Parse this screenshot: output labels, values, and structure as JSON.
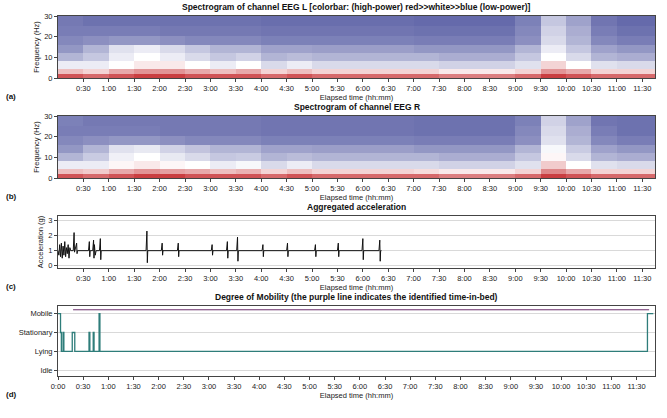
{
  "chart_data": [
    {
      "type": "heatmap",
      "panel": "(a)",
      "title": "Spectrogram of channel EEG L [colorbar: (high-power) red>>white>>blue (low-power)]",
      "x_label": "Elapsed time (hh:mm)",
      "y_label": "Frequency (Hz)",
      "x": [
        15,
        45,
        75,
        105,
        135,
        165,
        195,
        225,
        255,
        285,
        315,
        345,
        375,
        405,
        435,
        465,
        495,
        525,
        555,
        585,
        615,
        645,
        675,
        705
      ],
      "y": [
        1,
        3,
        6,
        10,
        14,
        18,
        22.5,
        27.5
      ],
      "z": [
        [
          0.9,
          0.85,
          0.9,
          0.95,
          0.95,
          0.9,
          0.9,
          0.9,
          0.85,
          0.9,
          0.85,
          0.85,
          0.85,
          0.85,
          0.85,
          0.8,
          0.8,
          0.8,
          0.85,
          0.95,
          0.9,
          0.85,
          0.85,
          0.85
        ],
        [
          0.65,
          0.6,
          0.7,
          0.75,
          0.75,
          0.7,
          0.65,
          0.7,
          0.6,
          0.65,
          0.6,
          0.6,
          0.6,
          0.6,
          0.6,
          0.55,
          0.55,
          0.55,
          0.6,
          0.75,
          0.7,
          0.6,
          0.6,
          0.6
        ],
        [
          0.45,
          0.45,
          0.5,
          0.55,
          0.55,
          0.5,
          0.45,
          0.5,
          0.4,
          0.45,
          0.4,
          0.4,
          0.4,
          0.4,
          0.4,
          0.38,
          0.38,
          0.38,
          0.42,
          0.6,
          0.5,
          0.42,
          0.4,
          0.4
        ],
        [
          0.3,
          0.35,
          0.45,
          0.5,
          0.45,
          0.4,
          0.35,
          0.38,
          0.3,
          0.32,
          0.3,
          0.3,
          0.3,
          0.3,
          0.3,
          0.28,
          0.28,
          0.28,
          0.35,
          0.5,
          0.4,
          0.3,
          0.28,
          0.28
        ],
        [
          0.22,
          0.3,
          0.42,
          0.45,
          0.4,
          0.35,
          0.3,
          0.3,
          0.25,
          0.25,
          0.24,
          0.24,
          0.24,
          0.24,
          0.22,
          0.22,
          0.22,
          0.22,
          0.3,
          0.45,
          0.35,
          0.25,
          0.22,
          0.22
        ],
        [
          0.18,
          0.2,
          0.22,
          0.22,
          0.2,
          0.18,
          0.18,
          0.18,
          0.16,
          0.16,
          0.16,
          0.16,
          0.16,
          0.16,
          0.15,
          0.15,
          0.15,
          0.15,
          0.2,
          0.4,
          0.3,
          0.18,
          0.15,
          0.15
        ],
        [
          0.15,
          0.15,
          0.15,
          0.15,
          0.14,
          0.14,
          0.14,
          0.14,
          0.13,
          0.13,
          0.13,
          0.13,
          0.13,
          0.13,
          0.12,
          0.12,
          0.12,
          0.12,
          0.18,
          0.38,
          0.28,
          0.15,
          0.12,
          0.12
        ],
        [
          0.14,
          0.12,
          0.12,
          0.12,
          0.12,
          0.12,
          0.12,
          0.12,
          0.11,
          0.11,
          0.11,
          0.11,
          0.11,
          0.11,
          0.1,
          0.1,
          0.1,
          0.1,
          0.16,
          0.35,
          0.25,
          0.13,
          0.1,
          0.1
        ]
      ],
      "zlim": [
        0,
        1
      ],
      "colors": [
        "#3f4596",
        "#ffffff",
        "#c4282c"
      ],
      "xlim": [
        0,
        705
      ],
      "xticks": [
        {
          "value": 30,
          "label": "0:30"
        },
        {
          "value": 60,
          "label": "1:00"
        },
        {
          "value": 90,
          "label": "1:30"
        },
        {
          "value": 120,
          "label": "2:00"
        },
        {
          "value": 150,
          "label": "2:30"
        },
        {
          "value": 180,
          "label": "3:00"
        },
        {
          "value": 210,
          "label": "3:30"
        },
        {
          "value": 240,
          "label": "4:00"
        },
        {
          "value": 270,
          "label": "4:30"
        },
        {
          "value": 300,
          "label": "5:00"
        },
        {
          "value": 330,
          "label": "5:30"
        },
        {
          "value": 360,
          "label": "6:00"
        },
        {
          "value": 390,
          "label": "6:30"
        },
        {
          "value": 420,
          "label": "7:00"
        },
        {
          "value": 450,
          "label": "7:30"
        },
        {
          "value": 480,
          "label": "8:00"
        },
        {
          "value": 510,
          "label": "8:30"
        },
        {
          "value": 540,
          "label": "9:00"
        },
        {
          "value": 570,
          "label": "9:30"
        },
        {
          "value": 600,
          "label": "10:00"
        },
        {
          "value": 630,
          "label": "10:30"
        },
        {
          "value": 660,
          "label": "11:00"
        },
        {
          "value": 690,
          "label": "11:30"
        }
      ],
      "ylim": [
        0,
        30
      ],
      "yticks": [
        0,
        10,
        20,
        30
      ],
      "grid": false
    },
    {
      "type": "heatmap",
      "panel": "(b)",
      "title": "Spectrogram of channel EEG R",
      "x_label": "Elapsed time (hh:mm)",
      "y_label": "Frequency (Hz)",
      "x": [
        15,
        45,
        75,
        105,
        135,
        165,
        195,
        225,
        255,
        285,
        315,
        345,
        375,
        405,
        435,
        465,
        495,
        525,
        555,
        585,
        615,
        645,
        675,
        705
      ],
      "y": [
        1,
        3,
        6,
        10,
        14,
        18,
        22.5,
        27.5
      ],
      "z": [
        [
          0.9,
          0.85,
          0.9,
          0.95,
          0.95,
          0.9,
          0.9,
          0.9,
          0.85,
          0.9,
          0.85,
          0.85,
          0.85,
          0.85,
          0.85,
          0.8,
          0.8,
          0.8,
          0.85,
          0.95,
          0.9,
          0.85,
          0.85,
          0.85
        ],
        [
          0.65,
          0.62,
          0.7,
          0.75,
          0.72,
          0.7,
          0.65,
          0.68,
          0.6,
          0.65,
          0.6,
          0.6,
          0.6,
          0.6,
          0.58,
          0.55,
          0.55,
          0.55,
          0.6,
          0.78,
          0.7,
          0.6,
          0.6,
          0.6
        ],
        [
          0.45,
          0.45,
          0.52,
          0.55,
          0.52,
          0.5,
          0.45,
          0.48,
          0.4,
          0.45,
          0.4,
          0.4,
          0.4,
          0.4,
          0.4,
          0.38,
          0.38,
          0.38,
          0.42,
          0.62,
          0.5,
          0.42,
          0.4,
          0.4
        ],
        [
          0.3,
          0.36,
          0.46,
          0.5,
          0.44,
          0.4,
          0.35,
          0.36,
          0.3,
          0.32,
          0.3,
          0.3,
          0.3,
          0.3,
          0.3,
          0.28,
          0.28,
          0.28,
          0.35,
          0.52,
          0.4,
          0.3,
          0.28,
          0.28
        ],
        [
          0.22,
          0.3,
          0.42,
          0.44,
          0.38,
          0.34,
          0.3,
          0.3,
          0.25,
          0.25,
          0.24,
          0.24,
          0.24,
          0.24,
          0.22,
          0.22,
          0.22,
          0.22,
          0.3,
          0.48,
          0.36,
          0.25,
          0.22,
          0.22
        ],
        [
          0.18,
          0.2,
          0.22,
          0.22,
          0.2,
          0.18,
          0.18,
          0.18,
          0.16,
          0.16,
          0.16,
          0.16,
          0.16,
          0.16,
          0.15,
          0.15,
          0.15,
          0.15,
          0.2,
          0.42,
          0.3,
          0.18,
          0.15,
          0.15
        ],
        [
          0.15,
          0.15,
          0.15,
          0.15,
          0.14,
          0.14,
          0.14,
          0.14,
          0.13,
          0.13,
          0.13,
          0.13,
          0.13,
          0.13,
          0.12,
          0.12,
          0.12,
          0.12,
          0.18,
          0.4,
          0.28,
          0.15,
          0.12,
          0.12
        ],
        [
          0.16,
          0.14,
          0.14,
          0.14,
          0.14,
          0.14,
          0.14,
          0.14,
          0.13,
          0.13,
          0.13,
          0.13,
          0.13,
          0.13,
          0.12,
          0.12,
          0.12,
          0.12,
          0.16,
          0.38,
          0.25,
          0.13,
          0.12,
          0.12
        ]
      ],
      "zlim": [
        0,
        1
      ],
      "colors": [
        "#3f4596",
        "#ffffff",
        "#c4282c"
      ],
      "xlim": [
        0,
        705
      ],
      "xticks": [
        {
          "value": 30,
          "label": "0:30"
        },
        {
          "value": 60,
          "label": "1:00"
        },
        {
          "value": 90,
          "label": "1:30"
        },
        {
          "value": 120,
          "label": "2:00"
        },
        {
          "value": 150,
          "label": "2:30"
        },
        {
          "value": 180,
          "label": "3:00"
        },
        {
          "value": 210,
          "label": "3:30"
        },
        {
          "value": 240,
          "label": "4:00"
        },
        {
          "value": 270,
          "label": "4:30"
        },
        {
          "value": 300,
          "label": "5:00"
        },
        {
          "value": 330,
          "label": "5:30"
        },
        {
          "value": 360,
          "label": "6:00"
        },
        {
          "value": 390,
          "label": "6:30"
        },
        {
          "value": 420,
          "label": "7:00"
        },
        {
          "value": 450,
          "label": "7:30"
        },
        {
          "value": 480,
          "label": "8:00"
        },
        {
          "value": 510,
          "label": "8:30"
        },
        {
          "value": 540,
          "label": "9:00"
        },
        {
          "value": 570,
          "label": "9:30"
        },
        {
          "value": 600,
          "label": "10:00"
        },
        {
          "value": 630,
          "label": "10:30"
        },
        {
          "value": 660,
          "label": "11:00"
        },
        {
          "value": 690,
          "label": "11:30"
        }
      ],
      "ylim": [
        0,
        30
      ],
      "yticks": [
        0,
        10,
        20,
        30
      ],
      "grid": false
    },
    {
      "type": "line",
      "panel": "(c)",
      "title": "Aggregated acceleration",
      "x_label": "Elapsed time (hh:mm)",
      "y_label": "Acceleration (g)",
      "series": [
        {
          "color": "#111111",
          "line_style": "solid",
          "x": [
            0,
            1,
            2,
            3,
            4,
            5,
            6,
            7,
            8,
            9,
            10,
            11,
            12,
            13,
            14,
            15,
            18,
            19,
            19.5,
            20,
            22,
            22.5,
            23,
            36,
            37,
            37.5,
            38,
            41,
            42,
            42.5,
            43,
            44,
            45,
            49,
            50,
            50.5,
            51,
            104,
            105,
            105.5,
            106,
            122,
            123,
            123.5,
            124,
            141,
            142,
            142.5,
            143,
            181,
            182,
            182.5,
            183,
            199,
            200,
            200.5,
            201,
            211,
            212,
            212.5,
            213,
            241,
            242,
            242.5,
            243,
            270,
            271,
            271.5,
            272,
            303,
            304,
            304.5,
            305,
            330,
            331,
            331.5,
            332,
            359,
            360,
            360.5,
            361,
            379,
            380,
            380.5,
            381,
            382
          ],
          "values": [
            1.0,
            0.7,
            1.4,
            0.6,
            1.5,
            0.5,
            1.3,
            0.7,
            1.6,
            0.6,
            1.2,
            0.8,
            1.4,
            0.5,
            1.2,
            1.0,
            1.0,
            2.2,
            0.9,
            1.0,
            1.5,
            0.8,
            1.0,
            1.0,
            1.6,
            0.6,
            1.0,
            1.0,
            1.7,
            0.5,
            1.4,
            0.7,
            1.0,
            1.0,
            1.8,
            0.4,
            1.0,
            1.0,
            2.3,
            0.2,
            1.0,
            1.0,
            1.5,
            0.7,
            1.0,
            1.0,
            1.5,
            0.6,
            1.0,
            1.0,
            1.4,
            0.7,
            1.0,
            1.0,
            1.6,
            0.5,
            1.0,
            1.0,
            1.9,
            0.3,
            1.0,
            1.0,
            1.4,
            0.6,
            1.0,
            1.0,
            1.5,
            0.6,
            1.0,
            1.0,
            1.4,
            0.6,
            1.0,
            1.0,
            1.5,
            0.6,
            1.0,
            1.0,
            1.8,
            0.4,
            1.0,
            1.0,
            1.7,
            0.3,
            1.0,
            1.0
          ]
        }
      ],
      "xlim": [
        0,
        705
      ],
      "xticks": [
        {
          "value": 30,
          "label": "0:30"
        },
        {
          "value": 60,
          "label": "1:00"
        },
        {
          "value": 90,
          "label": "1:30"
        },
        {
          "value": 120,
          "label": "2:00"
        },
        {
          "value": 150,
          "label": "2:30"
        },
        {
          "value": 180,
          "label": "3:00"
        },
        {
          "value": 210,
          "label": "3:30"
        },
        {
          "value": 240,
          "label": "4:00"
        },
        {
          "value": 270,
          "label": "4:30"
        },
        {
          "value": 300,
          "label": "5:00"
        },
        {
          "value": 330,
          "label": "5:30"
        },
        {
          "value": 360,
          "label": "6:00"
        },
        {
          "value": 390,
          "label": "6:30"
        },
        {
          "value": 420,
          "label": "7:00"
        },
        {
          "value": 450,
          "label": "7:30"
        },
        {
          "value": 480,
          "label": "8:00"
        },
        {
          "value": 510,
          "label": "8:30"
        },
        {
          "value": 540,
          "label": "9:00"
        },
        {
          "value": 570,
          "label": "9:30"
        },
        {
          "value": 600,
          "label": "10:00"
        },
        {
          "value": 630,
          "label": "10:30"
        },
        {
          "value": 660,
          "label": "11:00"
        },
        {
          "value": 690,
          "label": "11:30"
        }
      ],
      "ylim": [
        -0.15,
        3.3
      ],
      "yticks": [
        0,
        1,
        2,
        3
      ],
      "grid": true
    },
    {
      "type": "line",
      "panel": "(d)",
      "title": "Degree of Mobility (the purple line indicates the identified time-in-bed)",
      "x_label": "Elapsed time (hh:mm)",
      "series": [
        {
          "color": "#2e7d7a",
          "line_style": "step",
          "x": [
            0,
            3,
            4,
            6,
            7,
            17,
            20,
            37,
            38,
            42,
            43,
            49,
            50,
            703,
            710
          ],
          "values": [
            3,
            2,
            1,
            2,
            1,
            2,
            1,
            2,
            1,
            2,
            1,
            3,
            1,
            3,
            3
          ]
        },
        {
          "color": "#6b2d6b",
          "line_style": "solid",
          "x": [
            18,
            705
          ],
          "values": [
            3.2,
            3.2
          ]
        }
      ],
      "xlim": [
        0,
        712
      ],
      "xticks": [
        {
          "value": 0,
          "label": "0:00"
        },
        {
          "value": 30,
          "label": "0:30"
        },
        {
          "value": 60,
          "label": "1:00"
        },
        {
          "value": 90,
          "label": "1:30"
        },
        {
          "value": 120,
          "label": "2:00"
        },
        {
          "value": 150,
          "label": "2:30"
        },
        {
          "value": 180,
          "label": "3:00"
        },
        {
          "value": 210,
          "label": "3:30"
        },
        {
          "value": 240,
          "label": "4:00"
        },
        {
          "value": 270,
          "label": "4:30"
        },
        {
          "value": 300,
          "label": "5:00"
        },
        {
          "value": 330,
          "label": "5:30"
        },
        {
          "value": 360,
          "label": "6:00"
        },
        {
          "value": 390,
          "label": "6:30"
        },
        {
          "value": 420,
          "label": "7:00"
        },
        {
          "value": 450,
          "label": "7:30"
        },
        {
          "value": 480,
          "label": "8:00"
        },
        {
          "value": 510,
          "label": "8:30"
        },
        {
          "value": 540,
          "label": "9:00"
        },
        {
          "value": 570,
          "label": "9:30"
        },
        {
          "value": 600,
          "label": "10:00"
        },
        {
          "value": 630,
          "label": "10:30"
        },
        {
          "value": 660,
          "label": "11:00"
        },
        {
          "value": 690,
          "label": "11:30"
        }
      ],
      "ylim": [
        -0.3,
        3.4
      ],
      "yticks": [
        {
          "value": 0,
          "label": "Idle"
        },
        {
          "value": 1,
          "label": "Lying"
        },
        {
          "value": 2,
          "label": "Stationary"
        },
        {
          "value": 3,
          "label": "Mobile"
        }
      ],
      "grid": true
    }
  ]
}
